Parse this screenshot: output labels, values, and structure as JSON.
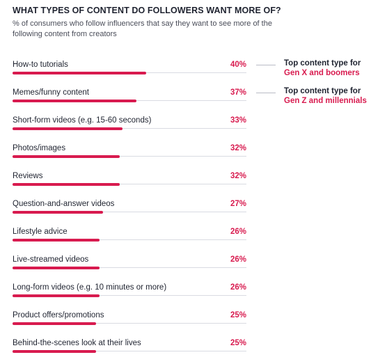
{
  "chart_data": {
    "type": "bar",
    "orientation": "horizontal",
    "title": "WHAT TYPES OF CONTENT DO FOLLOWERS WANT MORE OF?",
    "subtitle": "% of consumers who follow influencers that say they want to see more of the following content from creators",
    "categories": [
      "How-to tutorials",
      "Memes/funny content",
      "Short-form videos (e.g. 15-60 seconds)",
      "Photos/images",
      "Reviews",
      "Question-and-answer videos",
      "Lifestyle advice",
      "Live-streamed videos",
      "Long-form videos (e.g. 10 minutes or more)",
      "Product offers/promotions",
      "Behind-the-scenes look at their lives"
    ],
    "values": [
      40,
      37,
      33,
      32,
      32,
      27,
      26,
      26,
      26,
      25,
      25
    ],
    "value_labels": [
      "40%",
      "37%",
      "33%",
      "32%",
      "32%",
      "27%",
      "26%",
      "26%",
      "26%",
      "25%",
      "25%"
    ],
    "xlim": [
      0,
      70
    ],
    "unit": "%",
    "bar_color": "#d81b4f",
    "annotations": [
      {
        "category_index": 0,
        "line1": "Top content type for",
        "line2": "Gen X and boomers"
      },
      {
        "category_index": 1,
        "line1": "Top content type for",
        "line2": "Gen Z and millennials"
      }
    ]
  }
}
